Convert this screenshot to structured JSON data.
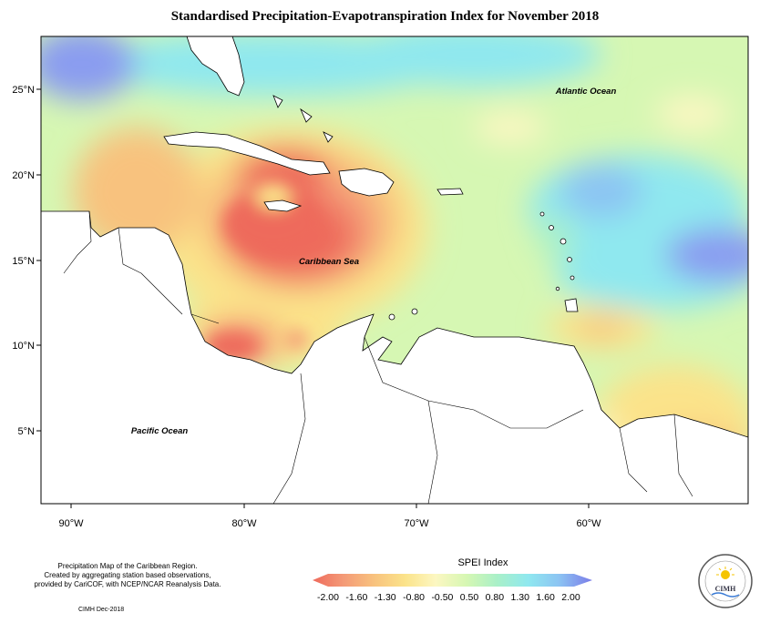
{
  "title": "Standardised Precipitation-Evapotranspiration Index for November 2018",
  "map": {
    "latitude_labels": [
      "25°N",
      "20°N",
      "15°N",
      "10°N",
      "5°N"
    ],
    "longitude_labels": [
      "90°W",
      "80°W",
      "70°W",
      "60°W"
    ],
    "labels": {
      "atlantic": "Atlantic Ocean",
      "caribbean": "Caribbean Sea",
      "pacific": "Pacific Ocean"
    }
  },
  "legend": {
    "title": "SPEI Index",
    "ticks": [
      "-2.00",
      "-1.60",
      "-1.30",
      "-0.80",
      "-0.50",
      "0.50",
      "0.80",
      "1.30",
      "1.60",
      "2.00"
    ],
    "colors": [
      "#ee6a5c",
      "#f49a77",
      "#f8c27e",
      "#fbe38a",
      "#fcf7c2",
      "#d6f7b3",
      "#a9f0c8",
      "#8fe8ef",
      "#8cc4f3",
      "#8a9cf0",
      "#7b7ce8"
    ]
  },
  "credits": {
    "line1": "Precipitation Map of the Caribbean Region.",
    "line2": "Created by aggregating station based observations,",
    "line3": "provided by CariCOF, with NCEP/NCAR Reanalysis Data.",
    "stamp": "CIMH Dec-2018"
  },
  "logo": {
    "text": "CIMH"
  }
}
